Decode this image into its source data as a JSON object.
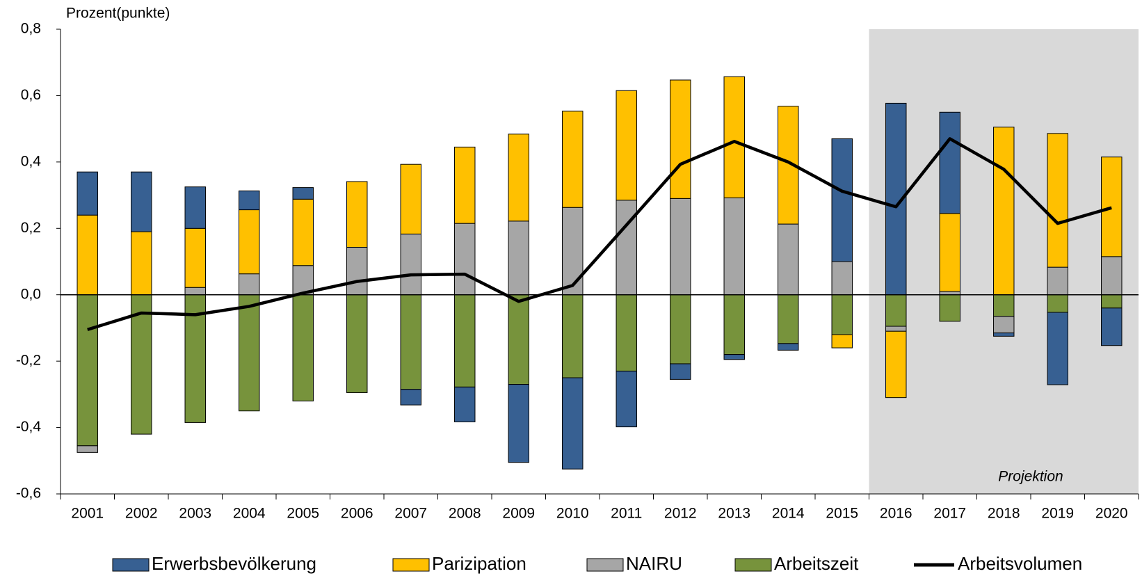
{
  "chart_data": {
    "type": "stacked_bar_line",
    "y_label": "Prozent(punkte)",
    "categories": [
      "2001",
      "2002",
      "2003",
      "2004",
      "2005",
      "2006",
      "2007",
      "2008",
      "2009",
      "2010",
      "2011",
      "2012",
      "2013",
      "2014",
      "2015",
      "2016",
      "2017",
      "2018",
      "2019",
      "2020"
    ],
    "series": [
      {
        "name": "Erwerbsbevölkerung",
        "color": "#376092",
        "values": [
          0.13,
          0.18,
          0.125,
          0.057,
          0.035,
          0,
          -0.047,
          -0.105,
          -0.235,
          -0.275,
          -0.168,
          -0.047,
          -0.015,
          -0.02,
          0.37,
          0.577,
          0.305,
          -0.01,
          -0.218,
          -0.113
        ]
      },
      {
        "name": "Parizipation",
        "color": "#ffc000",
        "values": [
          0.24,
          0.19,
          0.178,
          0.193,
          0.2,
          0.198,
          0.21,
          0.23,
          0.262,
          0.29,
          0.33,
          0.357,
          0.365,
          0.355,
          -0.04,
          -0.2,
          0.235,
          0.505,
          0.403,
          0.3
        ]
      },
      {
        "name": "NAIRU",
        "color": "#a6a6a6",
        "values": [
          -0.02,
          0,
          0.022,
          0.063,
          0.088,
          0.143,
          0.183,
          0.215,
          0.222,
          0.263,
          0.285,
          0.29,
          0.292,
          0.213,
          0.1,
          -0.015,
          0.01,
          -0.05,
          0.083,
          0.115
        ]
      },
      {
        "name": "Arbeitszeit",
        "color": "#77933c",
        "values": [
          -0.455,
          -0.42,
          -0.385,
          -0.35,
          -0.32,
          -0.295,
          -0.285,
          -0.278,
          -0.27,
          -0.25,
          -0.23,
          -0.208,
          -0.18,
          -0.147,
          -0.12,
          -0.095,
          -0.08,
          -0.065,
          -0.053,
          -0.04
        ]
      },
      {
        "name": "Arbeitsvolumen",
        "color": "#000000",
        "type": "line",
        "values": [
          -0.105,
          -0.055,
          -0.06,
          -0.035,
          0.005,
          0.04,
          0.06,
          0.062,
          -0.02,
          0.028,
          0.21,
          0.393,
          0.462,
          0.4,
          0.312,
          0.265,
          0.47,
          0.378,
          0.215,
          0.262
        ]
      }
    ],
    "ylim": [
      -0.6,
      0.8
    ],
    "yticks": [
      {
        "value": -0.6,
        "label": "-0,6"
      },
      {
        "value": -0.4,
        "label": "-0,4"
      },
      {
        "value": -0.2,
        "label": "-0,2"
      },
      {
        "value": 0,
        "label": "0,0"
      },
      {
        "value": 0.2,
        "label": "0,2"
      },
      {
        "value": 0.4,
        "label": "0,4"
      },
      {
        "value": 0.6,
        "label": "0,6"
      },
      {
        "value": 0.8,
        "label": "0,8"
      }
    ],
    "projection": {
      "label": "Projektion",
      "start": "2016",
      "color": "#d9d9d9"
    },
    "legend": "bottom"
  }
}
